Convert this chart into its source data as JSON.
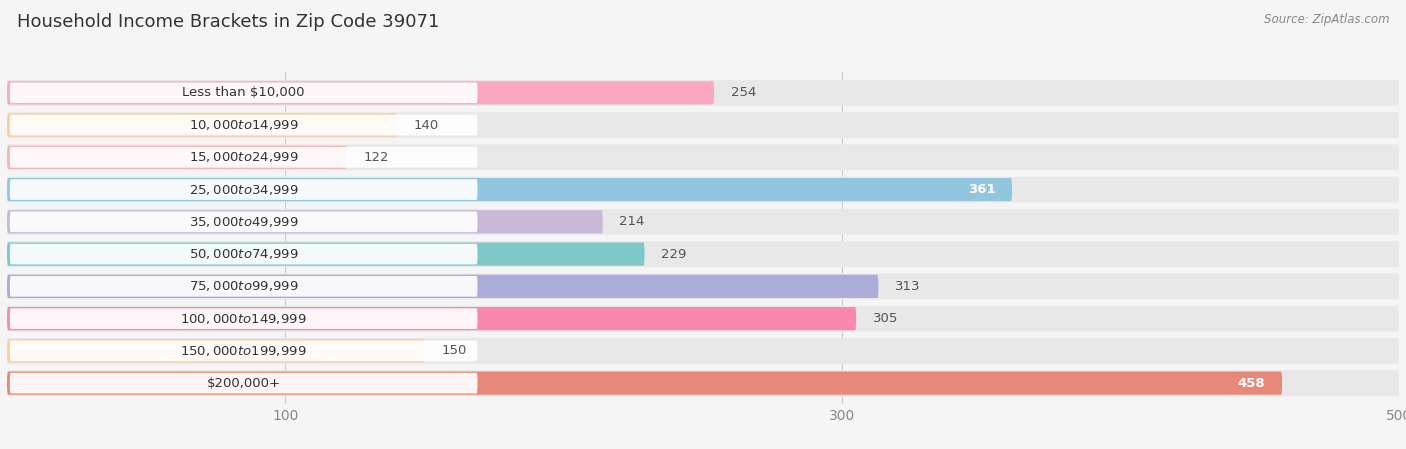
{
  "title": "Household Income Brackets in Zip Code 39071",
  "source": "Source: ZipAtlas.com",
  "categories": [
    "Less than $10,000",
    "$10,000 to $14,999",
    "$15,000 to $24,999",
    "$25,000 to $34,999",
    "$35,000 to $49,999",
    "$50,000 to $74,999",
    "$75,000 to $99,999",
    "$100,000 to $149,999",
    "$150,000 to $199,999",
    "$200,000+"
  ],
  "values": [
    254,
    140,
    122,
    361,
    214,
    229,
    313,
    305,
    150,
    458
  ],
  "bar_colors": [
    "#F9A8C0",
    "#FBCFA0",
    "#F4B8B0",
    "#92C5DE",
    "#C9B8D8",
    "#7EC8C8",
    "#ABACD8",
    "#F988B0",
    "#FBCFA0",
    "#E88878"
  ],
  "label_inside": [
    false,
    false,
    false,
    true,
    false,
    false,
    false,
    false,
    false,
    true
  ],
  "data_min": 0,
  "data_max": 500,
  "xticks": [
    100,
    300,
    500
  ],
  "background_color": "#f5f5f5",
  "row_bg_color": "#e8e8e8",
  "label_pill_color": "#ffffff",
  "title_fontsize": 13,
  "tick_fontsize": 10
}
